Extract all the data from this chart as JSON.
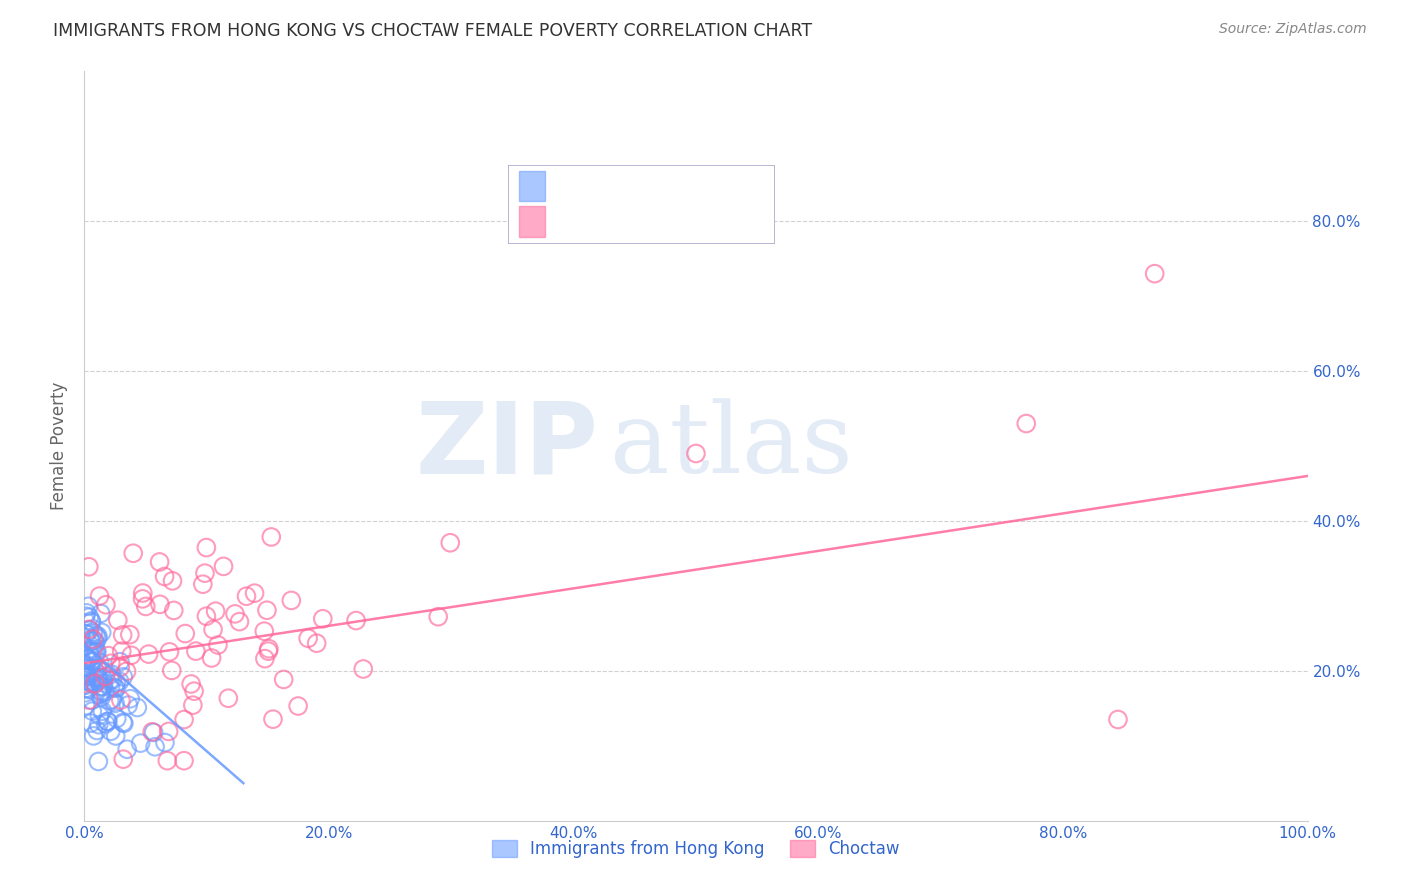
{
  "title": "IMMIGRANTS FROM HONG KONG VS CHOCTAW FEMALE POVERTY CORRELATION CHART",
  "source": "Source: ZipAtlas.com",
  "ylabel": "Female Poverty",
  "xlabel": "",
  "background_color": "#ffffff",
  "watermark_zip": "ZIP",
  "watermark_atlas": "atlas",
  "blue_color": "#6699ff",
  "pink_color": "#ff6699",
  "axis_label_color": "#3366cc",
  "grid_color": "#cccccc",
  "title_color": "#333333",
  "source_color": "#888888",
  "ylabel_color": "#666666",
  "xlim": [
    0.0,
    1.0
  ],
  "ylim": [
    0.0,
    1.0
  ],
  "xticks": [
    0.0,
    0.2,
    0.4,
    0.6,
    0.8,
    1.0
  ],
  "yticks": [
    0.2,
    0.4,
    0.6,
    0.8
  ],
  "xtick_labels": [
    "0.0%",
    "20.0%",
    "40.0%",
    "60.0%",
    "80.0%",
    "100.0%"
  ],
  "ytick_labels_right": [
    "20.0%",
    "40.0%",
    "60.0%",
    "80.0%"
  ],
  "legend_labels": [
    "Immigrants from Hong Kong",
    "Choctaw"
  ],
  "blue_trend_x": [
    0.0,
    0.13
  ],
  "blue_trend_y": [
    0.235,
    0.05
  ],
  "pink_trend_x": [
    0.0,
    1.0
  ],
  "pink_trend_y": [
    0.21,
    0.46
  ]
}
